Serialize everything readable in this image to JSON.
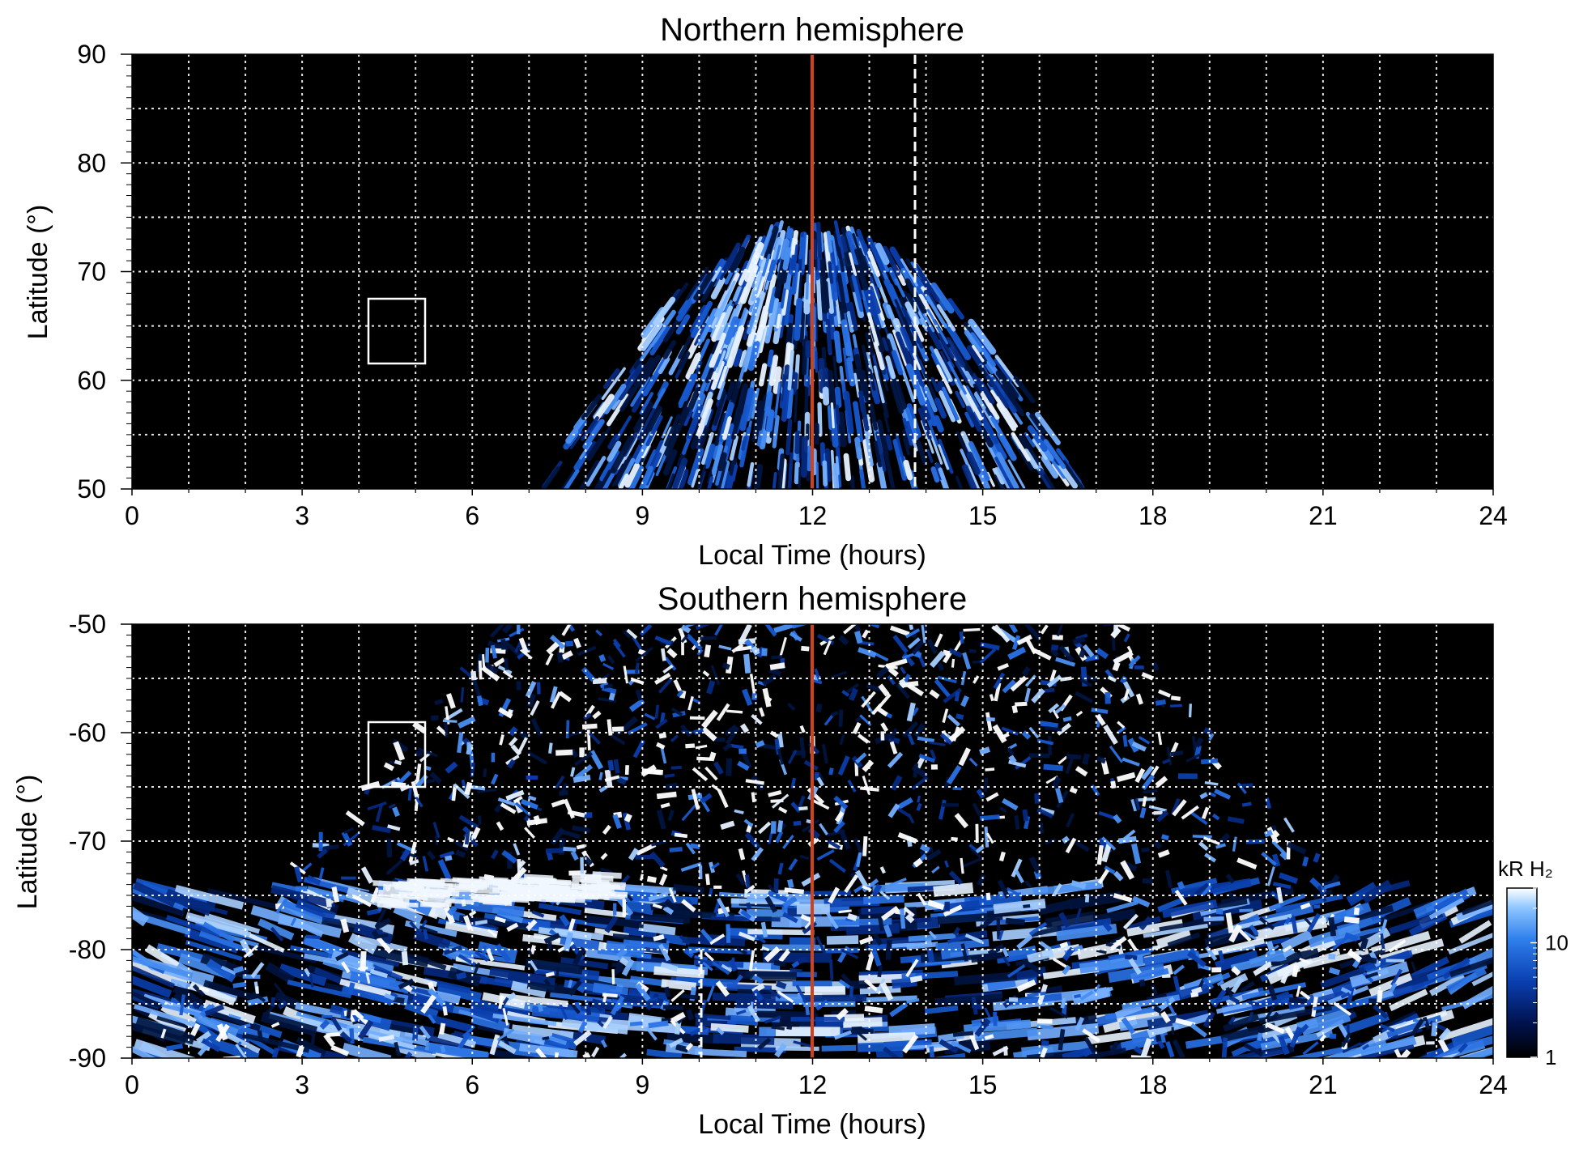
{
  "chart_data": [
    {
      "type": "heatmap",
      "title": "Northern hemisphere",
      "xlabel": "Local Time (hours)",
      "ylabel": "Latitude (°)",
      "xlim": [
        0,
        24
      ],
      "ylim": [
        50,
        90
      ],
      "x_ticks": [
        "0",
        "3",
        "6",
        "9",
        "12",
        "15",
        "18",
        "21",
        "24"
      ],
      "y_ticks": [
        "50",
        "60",
        "70",
        "80",
        "90"
      ],
      "grid": true,
      "background": "#000000",
      "reference_line": {
        "x": 12,
        "color": "#d0421b"
      },
      "dashed_line": {
        "x": 13.8,
        "y_from": 50,
        "y_to": 88
      },
      "highlight_box": {
        "x": [
          4.1,
          5.1
        ],
        "y": [
          61.5,
          67.5
        ]
      },
      "coverage": {
        "center_x": 12,
        "top_lat": 73,
        "half_width_at_50": 4.5
      }
    },
    {
      "type": "heatmap",
      "title": "Southern hemisphere",
      "xlabel": "Local Time (hours)",
      "ylabel": "Latitude (°)",
      "xlim": [
        0,
        24
      ],
      "ylim": [
        -90,
        -50
      ],
      "x_ticks": [
        "0",
        "3",
        "6",
        "9",
        "12",
        "15",
        "18",
        "21",
        "24"
      ],
      "y_ticks": [
        "-90",
        "-80",
        "-70",
        "-60",
        "-50"
      ],
      "grid": true,
      "background": "#000000",
      "reference_line": {
        "x": 12,
        "color": "#d0421b"
      },
      "dashed_line": {
        "x": 10.05,
        "y_from": -90,
        "y_to": -80
      },
      "highlight_box": {
        "x": [
          4.1,
          5.1
        ],
        "y": [
          -65,
          -59
        ]
      },
      "coverage": {
        "center_x": 12,
        "top_lat": -50,
        "left_edge_lat_at_0": -78
      }
    }
  ],
  "colorbar": {
    "title": "kR H₂",
    "ticks": [
      "1",
      "10"
    ],
    "scale": "log",
    "range": [
      1,
      30
    ],
    "colors": [
      "#000000",
      "#00124d",
      "#0a3fb0",
      "#2f80ec",
      "#8cc4ff",
      "#ffffff"
    ]
  }
}
